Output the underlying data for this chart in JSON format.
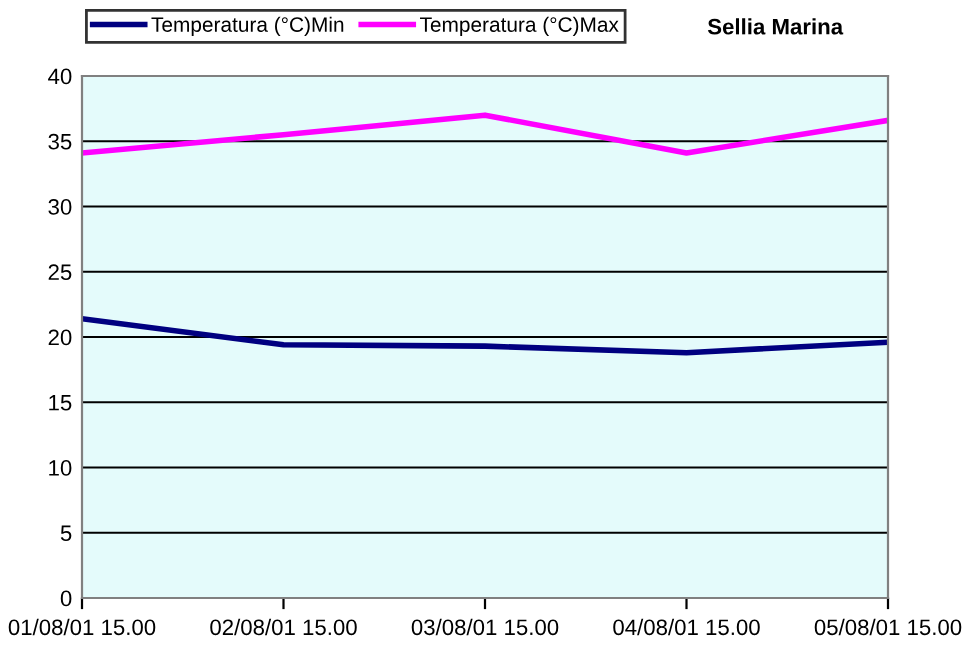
{
  "chart_data": {
    "type": "line",
    "title": "Sellia Marina",
    "categories": [
      "01/08/01 15.00",
      "02/08/01 15.00",
      "03/08/01 15.00",
      "04/08/01 15.00",
      "05/08/01 15.00"
    ],
    "series": [
      {
        "name": "Temperatura (°C)Min",
        "color": "#000080",
        "values": [
          21.4,
          19.4,
          19.3,
          18.8,
          19.6
        ]
      },
      {
        "name": "Temperatura (°C)Max",
        "color": "#ff00ff",
        "values": [
          34.1,
          35.5,
          37.0,
          34.1,
          36.6
        ]
      }
    ],
    "ylim": [
      0,
      40
    ],
    "yticks": [
      0,
      5,
      10,
      15,
      20,
      25,
      30,
      35,
      40
    ],
    "grid": "y",
    "legend": "top left",
    "marker": "none"
  }
}
